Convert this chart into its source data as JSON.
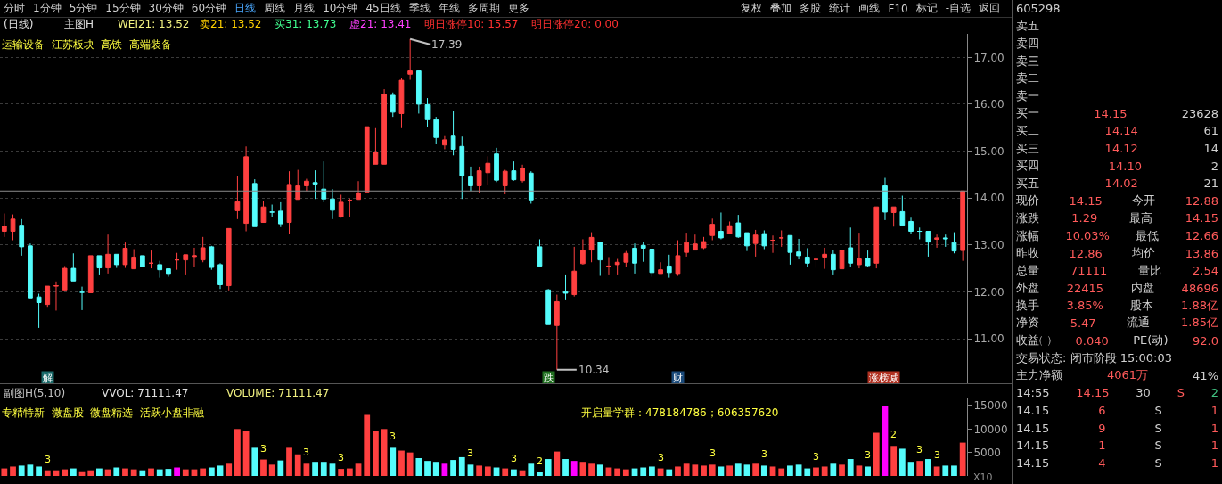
{
  "chart_data": [
    {
      "type": "candlestick",
      "categories": [
        null,
        null,
        null,
        null,
        null,
        null,
        null,
        null,
        null,
        null,
        null,
        null,
        null,
        null,
        null,
        null,
        null,
        null,
        null,
        null,
        null,
        null,
        null,
        null,
        null,
        null,
        null,
        null,
        null,
        null,
        null,
        null,
        null,
        null,
        null,
        null,
        null,
        null,
        null,
        null,
        null,
        null,
        null,
        null,
        null,
        null,
        null,
        null,
        null,
        null,
        null,
        null,
        null,
        null,
        null,
        null,
        null,
        null,
        null,
        null,
        null,
        null,
        null,
        null,
        null,
        null,
        null,
        null,
        null,
        null,
        null,
        null,
        null,
        null,
        null,
        null,
        null,
        null,
        null,
        null,
        null,
        null,
        null,
        null,
        null,
        null,
        null,
        null,
        null,
        null,
        null,
        null,
        null,
        null,
        null,
        null,
        null,
        null,
        null,
        null,
        null,
        null,
        null,
        null,
        null,
        null,
        null,
        null,
        null,
        null,
        null,
        null
      ],
      "ohlc": [
        [
          13.29,
          13.67,
          13.17,
          13.4
        ],
        [
          13.29,
          13.65,
          13.1,
          13.55
        ],
        [
          13.42,
          13.55,
          12.77,
          12.96
        ],
        [
          12.98,
          13.03,
          11.87,
          11.87
        ],
        [
          11.89,
          11.96,
          11.23,
          11.77
        ],
        [
          11.73,
          12.12,
          11.68,
          12.12
        ],
        [
          12.12,
          12.22,
          11.6,
          12.13
        ],
        [
          12.04,
          12.55,
          12.03,
          12.5
        ],
        [
          12.5,
          12.82,
          12.23,
          12.23
        ],
        [
          11.99,
          12.11,
          11.61,
          11.99
        ],
        [
          11.98,
          12.77,
          11.98,
          12.77
        ],
        [
          12.77,
          12.77,
          12.37,
          12.51
        ],
        [
          12.51,
          13.22,
          12.39,
          12.8
        ],
        [
          12.8,
          12.8,
          12.51,
          12.58
        ],
        [
          12.58,
          13.05,
          12.51,
          12.93
        ],
        [
          12.49,
          12.91,
          12.49,
          12.74
        ],
        [
          12.77,
          12.77,
          12.53,
          12.54
        ],
        [
          12.61,
          12.88,
          12.5,
          12.61
        ],
        [
          12.58,
          12.66,
          12.3,
          12.47
        ],
        [
          12.49,
          12.5,
          12.32,
          12.39
        ],
        [
          12.68,
          12.83,
          12.47,
          12.68
        ],
        [
          12.68,
          12.79,
          12.37,
          12.79
        ],
        [
          12.75,
          12.94,
          12.53,
          12.77
        ],
        [
          12.68,
          13.17,
          12.63,
          12.94
        ],
        [
          12.96,
          12.98,
          12.47,
          12.52
        ],
        [
          12.58,
          12.61,
          12.06,
          12.15
        ],
        [
          12.13,
          13.35,
          12.03,
          13.35
        ],
        [
          13.73,
          14.47,
          13.55,
          13.92
        ],
        [
          13.46,
          15.1,
          13.29,
          14.88
        ],
        [
          14.31,
          14.4,
          13.39,
          13.39
        ],
        [
          13.48,
          13.93,
          13.48,
          13.81
        ],
        [
          13.7,
          13.86,
          13.59,
          13.7
        ],
        [
          13.72,
          13.91,
          13.38,
          13.45
        ],
        [
          13.48,
          14.57,
          13.23,
          14.29
        ],
        [
          13.97,
          14.6,
          13.97,
          14.26
        ],
        [
          14.26,
          14.41,
          14.15,
          14.36
        ],
        [
          14.33,
          14.59,
          13.98,
          14.3
        ],
        [
          14.19,
          14.78,
          13.91,
          13.98
        ],
        [
          13.98,
          14.19,
          13.55,
          13.74
        ],
        [
          13.6,
          14.07,
          13.58,
          13.91
        ],
        [
          13.95,
          13.99,
          13.6,
          13.95
        ],
        [
          13.97,
          14.36,
          13.97,
          14.11
        ],
        [
          14.13,
          15.52,
          14.13,
          15.52
        ],
        [
          14.72,
          15.49,
          14.72,
          14.98
        ],
        [
          14.72,
          16.32,
          14.72,
          16.21
        ],
        [
          16.19,
          16.25,
          15.73,
          15.83
        ],
        [
          15.8,
          16.56,
          15.49,
          16.51
        ],
        [
          16.64,
          17.39,
          16.52,
          16.71
        ],
        [
          16.71,
          16.71,
          15.8,
          16.0
        ],
        [
          15.99,
          16.13,
          15.51,
          15.67
        ],
        [
          15.67,
          15.73,
          15.15,
          15.29
        ],
        [
          15.13,
          15.32,
          15.04,
          15.24
        ],
        [
          15.32,
          15.86,
          14.91,
          15.04
        ],
        [
          15.1,
          15.31,
          13.98,
          14.48
        ],
        [
          14.45,
          14.67,
          14.15,
          14.26
        ],
        [
          14.26,
          14.67,
          14.1,
          14.58
        ],
        [
          14.54,
          14.89,
          14.27,
          14.74
        ],
        [
          14.94,
          15.07,
          14.34,
          14.38
        ],
        [
          14.26,
          14.6,
          14.08,
          14.57
        ],
        [
          14.58,
          14.78,
          14.37,
          14.39
        ],
        [
          14.37,
          14.71,
          14.33,
          14.64
        ],
        [
          14.53,
          14.57,
          13.88,
          13.96
        ],
        [
          12.96,
          13.12,
          12.55,
          12.55
        ],
        [
          12.04,
          12.06,
          11.3,
          11.3
        ],
        [
          11.28,
          11.94,
          10.34,
          11.79
        ],
        [
          12.0,
          12.37,
          11.82,
          11.97
        ],
        [
          11.94,
          12.96,
          11.9,
          12.44
        ],
        [
          12.6,
          13.12,
          12.58,
          12.88
        ],
        [
          12.89,
          13.27,
          12.63,
          13.16
        ],
        [
          13.06,
          13.07,
          12.34,
          12.68
        ],
        [
          12.54,
          12.74,
          12.37,
          12.55
        ],
        [
          12.58,
          12.7,
          12.37,
          12.63
        ],
        [
          12.63,
          12.87,
          12.53,
          12.82
        ],
        [
          12.93,
          13.03,
          12.39,
          12.61
        ],
        [
          12.99,
          13.07,
          12.64,
          12.93
        ],
        [
          12.91,
          12.91,
          12.32,
          12.41
        ],
        [
          12.39,
          12.63,
          12.39,
          12.47
        ],
        [
          12.55,
          12.79,
          12.3,
          12.41
        ],
        [
          12.39,
          13.1,
          12.34,
          12.77
        ],
        [
          12.84,
          13.26,
          12.75,
          13.05
        ],
        [
          12.89,
          13.22,
          12.89,
          13.02
        ],
        [
          12.94,
          13.17,
          12.91,
          13.07
        ],
        [
          13.2,
          13.56,
          13.1,
          13.44
        ],
        [
          13.29,
          13.69,
          13.12,
          13.15
        ],
        [
          13.24,
          13.5,
          13.24,
          13.41
        ],
        [
          13.47,
          13.64,
          13.15,
          13.17
        ],
        [
          13.26,
          13.26,
          12.87,
          12.98
        ],
        [
          13.03,
          13.32,
          12.75,
          13.21
        ],
        [
          13.24,
          13.31,
          12.91,
          12.98
        ],
        [
          13.1,
          13.2,
          12.83,
          13.1
        ],
        [
          13.15,
          13.31,
          12.96,
          13.15
        ],
        [
          13.2,
          13.2,
          12.58,
          12.84
        ],
        [
          12.85,
          13.13,
          12.69,
          12.77
        ],
        [
          12.74,
          12.93,
          12.53,
          12.61
        ],
        [
          12.69,
          12.75,
          12.51,
          12.69
        ],
        [
          12.74,
          12.94,
          12.49,
          12.8
        ],
        [
          12.8,
          12.89,
          12.37,
          12.47
        ],
        [
          12.49,
          12.89,
          12.49,
          12.89
        ],
        [
          12.94,
          13.37,
          12.53,
          12.61
        ],
        [
          12.58,
          13.26,
          12.5,
          12.7
        ],
        [
          12.71,
          12.88,
          12.53,
          12.56
        ],
        [
          12.61,
          13.81,
          12.5,
          13.81
        ],
        [
          14.26,
          14.43,
          13.53,
          13.7
        ],
        [
          13.69,
          13.81,
          13.39,
          13.81
        ],
        [
          13.71,
          14.05,
          13.4,
          13.42
        ],
        [
          13.5,
          13.58,
          13.23,
          13.29
        ],
        [
          13.29,
          13.37,
          13.12,
          13.29
        ],
        [
          13.29,
          13.29,
          12.75,
          13.06
        ],
        [
          13.12,
          13.22,
          12.94,
          13.15
        ],
        [
          13.15,
          13.22,
          12.96,
          13.13
        ],
        [
          13.05,
          13.27,
          12.82,
          12.87
        ],
        [
          12.88,
          14.15,
          12.66,
          14.15
        ]
      ],
      "ylim": [
        10.05,
        17.5
      ],
      "yticks": [
        {
          "value": 11,
          "label": "11.00"
        },
        {
          "value": 12,
          "label": "12.00"
        },
        {
          "value": 13,
          "label": "13.00"
        },
        {
          "value": 14,
          "label": "14.00"
        },
        {
          "value": 15,
          "label": "15.00"
        },
        {
          "value": 16,
          "label": "16.00"
        },
        {
          "value": 17,
          "label": "17.00"
        }
      ],
      "grid": "y",
      "tick_labels": "y",
      "ref_lines": [
        {
          "axis": "y",
          "value": 14.15,
          "color": "#8c8c8c"
        }
      ],
      "annotations": [
        "(日线)",
        "主图H",
        "WEI21: 13.52",
        "卖21: 13.52",
        "买31: 13.73",
        "虚21: 13.41",
        "明日涨停10: 15.57",
        "明日涨停20: 0.00",
        "运输设备  江苏板块  高铁  高端装备",
        "17.39",
        "10.34",
        "解",
        "跌",
        "财",
        "涨榜减"
      ]
    },
    {
      "type": "bar",
      "categories": [
        null,
        null,
        null,
        null,
        null,
        null,
        null,
        null,
        null,
        null,
        null,
        null,
        null,
        null,
        null,
        null,
        null,
        null,
        null,
        null,
        null,
        null,
        null,
        null,
        null,
        null,
        null,
        null,
        null,
        null,
        null,
        null,
        null,
        null,
        null,
        null,
        null,
        null,
        null,
        null,
        null,
        null,
        null,
        null,
        null,
        null,
        null,
        null,
        null,
        null,
        null,
        null,
        null,
        null,
        null,
        null,
        null,
        null,
        null,
        null,
        null,
        null,
        null,
        null,
        null,
        null,
        null,
        null,
        null,
        null,
        null,
        null,
        null,
        null,
        null,
        null,
        null,
        null,
        null,
        null,
        null,
        null,
        null,
        null,
        null,
        null,
        null,
        null,
        null,
        null,
        null,
        null,
        null,
        null,
        null,
        null,
        null,
        null,
        null,
        null,
        null,
        null,
        null,
        null,
        null,
        null,
        null,
        null,
        null,
        null,
        null,
        null
      ],
      "values": [
        1600,
        2000,
        2200,
        2400,
        2000,
        1200,
        1200,
        1400,
        1600,
        1000,
        1200,
        1600,
        1400,
        1800,
        1600,
        1400,
        1200,
        1600,
        1400,
        1500,
        1800,
        1400,
        1400,
        1600,
        1800,
        2200,
        2600,
        10000,
        9600,
        6000,
        3500,
        2400,
        3300,
        6000,
        4600,
        2600,
        3000,
        3000,
        2600,
        1500,
        1600,
        2600,
        13000,
        9600,
        10000,
        6000,
        5400,
        5000,
        3800,
        3200,
        3000,
        2600,
        3400,
        4000,
        2400,
        2200,
        2000,
        1800,
        1600,
        1400,
        1200,
        2600,
        800,
        3600,
        5200,
        3600,
        3200,
        3000,
        2600,
        2400,
        1800,
        1600,
        1400,
        1600,
        1800,
        2000,
        1600,
        1400,
        2000,
        2600,
        2400,
        2200,
        2400,
        2000,
        2200,
        2600,
        2400,
        2600,
        2200,
        2000,
        1600,
        2200,
        2400,
        1600,
        1800,
        2000,
        2600,
        2400,
        3600,
        2200,
        2000,
        9200,
        14800,
        6400,
        5800,
        3000,
        3200,
        3600,
        2000,
        2200,
        2200,
        7100
      ],
      "colors": [
        "#ff4040",
        "#ff4040",
        "#54fcfc",
        "#54fcfc",
        "#54fcfc",
        "#ff4040",
        "#ff4040",
        "#ff4040",
        "#54fcfc",
        "#ff4040",
        "#ff4040",
        "#54fcfc",
        "#ff4040",
        "#54fcfc",
        "#ff4040",
        "#ff4040",
        "#54fcfc",
        "#ff4040",
        "#54fcfc",
        "#54fcfc",
        "#ff00ff",
        "#ff4040",
        "#ff4040",
        "#ff4040",
        "#54fcfc",
        "#54fcfc",
        "#ff4040",
        "#ff4040",
        "#ff4040",
        "#54fcfc",
        "#ff4040",
        "#ff4040",
        "#54fcfc",
        "#ff4040",
        "#ff4040",
        "#ff4040",
        "#54fcfc",
        "#54fcfc",
        "#54fcfc",
        "#ff4040",
        "#ff4040",
        "#ff4040",
        "#ff4040",
        "#ff4040",
        "#ff4040",
        "#54fcfc",
        "#ff4040",
        "#ff4040",
        "#54fcfc",
        "#54fcfc",
        "#54fcfc",
        "#ff00ff",
        "#54fcfc",
        "#54fcfc",
        "#54fcfc",
        "#ff4040",
        "#ff4040",
        "#54fcfc",
        "#ff4040",
        "#54fcfc",
        "#ff4040",
        "#54fcfc",
        "#54fcfc",
        "#54fcfc",
        "#ff4040",
        "#54fcfc",
        "#ff00ff",
        "#ff4040",
        "#ff4040",
        "#54fcfc",
        "#ff4040",
        "#ff4040",
        "#ff4040",
        "#54fcfc",
        "#54fcfc",
        "#54fcfc",
        "#ff4040",
        "#54fcfc",
        "#ff4040",
        "#ff4040",
        "#ff4040",
        "#ff4040",
        "#ff4040",
        "#54fcfc",
        "#ff4040",
        "#54fcfc",
        "#54fcfc",
        "#ff4040",
        "#54fcfc",
        "#ff4040",
        "#ff4040",
        "#54fcfc",
        "#54fcfc",
        "#54fcfc",
        "#ff4040",
        "#ff4040",
        "#54fcfc",
        "#ff4040",
        "#54fcfc",
        "#ff4040",
        "#54fcfc",
        "#ff4040",
        "#ff00ff",
        "#ff4040",
        "#54fcfc",
        "#54fcfc",
        "#ff4040",
        "#54fcfc",
        "#ff4040",
        "#54fcfc",
        "#54fcfc",
        "#ff4040"
      ],
      "ylim": [
        0,
        16700
      ],
      "yticks": [
        5000,
        10000,
        15000
      ],
      "tick_labels": "y",
      "annotations": [
        "副图H(5,10)",
        "VVOL: 71111.47",
        "VOLUME: 71111.47",
        "专精特新  微盘股  微盘精选  活跃小盘非融",
        "开启量学群：478184786；606357620",
        "X10",
        "3",
        "3",
        "3",
        "3",
        "3",
        "3",
        "3",
        "2",
        "3",
        "3",
        "3",
        "3",
        "3",
        "2",
        "3",
        "3"
      ]
    },
    {
      "type": "other",
      "annotations": [
        "分时",
        "1分钟",
        "5分钟",
        "15分钟",
        "30分钟",
        "60分钟",
        "日线",
        "周线",
        "月线",
        "10分钟",
        "45日线",
        "季线",
        "年线",
        "多周期",
        "更多",
        "复权",
        "叠加",
        "多股",
        "统计",
        "画线",
        "F10",
        "标记",
        "-自选",
        "返回"
      ]
    },
    {
      "type": "other",
      "annotations": [
        "605298",
        "卖五",
        "卖四",
        "卖三",
        "卖二",
        "卖一",
        "买一  14.15  23628",
        "买二  14.14  61",
        "买三  14.12  14",
        "买四  14.10  2",
        "买五  14.02  21",
        "现价  14.15  今开  12.88",
        "涨跌  1.29  最高  14.15",
        "涨幅  10.03%  最低  12.66",
        "昨收  12.86  均价  13.86",
        "总量  71111  量比  2.54",
        "外盘  22415  内盘  48696",
        "换手  3.85%  股本  1.88亿",
        "净资  5.47  流通  1.85亿",
        "收益㈠  0.040  PE(动)  92.0",
        "交易状态: 闭市阶段 15:00:03",
        "主力净额  4061万  41%",
        "14:55  14.15  30  S  2",
        "14.15  6  S  1",
        "14.15  9  S  1",
        "14.15  1  S  1",
        "14.15  4  S  1"
      ]
    }
  ]
}
